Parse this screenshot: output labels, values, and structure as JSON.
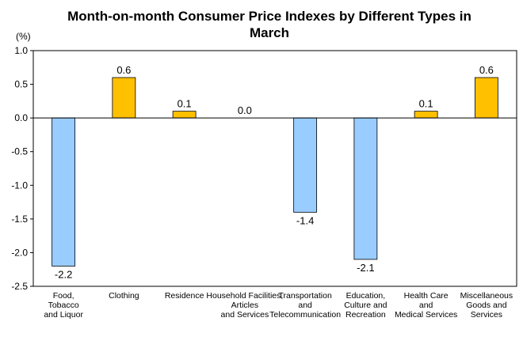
{
  "chart_data": {
    "type": "bar",
    "title": "Month-on-month Consumer Price Indexes by Different Types in March",
    "unit_label": "(%)",
    "categories": [
      [
        "Food,",
        "Tobacco",
        "and Liquor"
      ],
      [
        "Clothing"
      ],
      [
        "Residence"
      ],
      [
        "Household Facilities,",
        "Articles",
        "and Services"
      ],
      [
        "Transportation",
        "and",
        "Telecommunication"
      ],
      [
        "Education,",
        "Culture and",
        "Recreation"
      ],
      [
        "Health Care",
        "and",
        "Medical Services"
      ],
      [
        "Miscellaneous",
        "Goods and",
        "Services"
      ]
    ],
    "values": [
      -2.2,
      0.6,
      0.1,
      0.0,
      -1.4,
      -2.1,
      0.1,
      0.6
    ],
    "value_labels": [
      "-2.2",
      "0.6",
      "0.1",
      "0.0",
      "-1.4",
      "-2.1",
      "0.1",
      "0.6"
    ],
    "ylim": [
      -2.5,
      1.0
    ],
    "yticks": [
      1.0,
      0.5,
      0.0,
      -0.5,
      -1.0,
      -1.5,
      -2.0,
      -2.5
    ],
    "ytick_labels": [
      "1.0",
      "0.5",
      "0.0",
      "-0.5",
      "-1.0",
      "-1.5",
      "-2.0",
      "-2.5"
    ],
    "grid": false,
    "legend": "none",
    "colors": {
      "positive_fill": "#FFC000",
      "negative_fill": "#99CCFF",
      "bar_edge": "#000000",
      "axis": "#000000"
    }
  }
}
